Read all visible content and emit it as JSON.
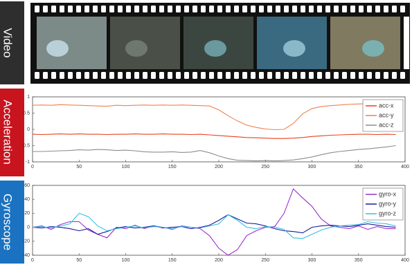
{
  "video": {
    "label": "Video"
  },
  "chart_data": [
    {
      "type": "line",
      "title": "Acceleration",
      "x": [
        0,
        10,
        20,
        30,
        40,
        50,
        60,
        70,
        80,
        90,
        100,
        110,
        120,
        130,
        140,
        150,
        160,
        170,
        180,
        190,
        200,
        210,
        220,
        230,
        240,
        250,
        260,
        270,
        280,
        290,
        300,
        310,
        320,
        330,
        340,
        350,
        360,
        370,
        380,
        390
      ],
      "series": [
        {
          "name": "acc-x",
          "color": "#e8411a",
          "values": [
            -0.15,
            -0.16,
            -0.15,
            -0.14,
            -0.15,
            -0.14,
            -0.15,
            -0.15,
            -0.16,
            -0.15,
            -0.15,
            -0.14,
            -0.15,
            -0.15,
            -0.14,
            -0.15,
            -0.15,
            -0.16,
            -0.15,
            -0.17,
            -0.19,
            -0.21,
            -0.23,
            -0.25,
            -0.26,
            -0.27,
            -0.28,
            -0.28,
            -0.27,
            -0.25,
            -0.22,
            -0.2,
            -0.18,
            -0.17,
            -0.16,
            -0.15,
            -0.15,
            -0.16,
            -0.15,
            -0.16
          ]
        },
        {
          "name": "acc-y",
          "color": "#f08050",
          "values": [
            0.74,
            0.75,
            0.74,
            0.76,
            0.75,
            0.74,
            0.73,
            0.72,
            0.71,
            0.74,
            0.73,
            0.74,
            0.75,
            0.74,
            0.75,
            0.74,
            0.75,
            0.74,
            0.73,
            0.72,
            0.6,
            0.42,
            0.26,
            0.13,
            0.06,
            0.01,
            -0.01,
            0.0,
            0.18,
            0.48,
            0.64,
            0.7,
            0.73,
            0.75,
            0.77,
            0.78,
            0.79,
            0.8,
            0.78,
            0.8
          ]
        },
        {
          "name": "acc-z",
          "color": "#8c8c8c",
          "values": [
            -0.68,
            -0.68,
            -0.67,
            -0.66,
            -0.65,
            -0.63,
            -0.64,
            -0.62,
            -0.63,
            -0.65,
            -0.64,
            -0.66,
            -0.69,
            -0.7,
            -0.7,
            -0.69,
            -0.71,
            -0.7,
            -0.65,
            -0.72,
            -0.82,
            -0.9,
            -0.95,
            -0.96,
            -0.97,
            -0.96,
            -0.97,
            -0.96,
            -0.94,
            -0.9,
            -0.85,
            -0.78,
            -0.72,
            -0.68,
            -0.65,
            -0.62,
            -0.6,
            -0.57,
            -0.54,
            -0.5
          ]
        }
      ],
      "xlim": [
        0,
        400
      ],
      "xticks": [
        0,
        50,
        100,
        150,
        200,
        250,
        300,
        350,
        400
      ],
      "ylim": [
        -1,
        1
      ],
      "yticks": [
        -1,
        -0.5,
        0,
        0.5,
        1
      ],
      "legend": "upper right"
    },
    {
      "type": "line",
      "title": "Gyroscope",
      "x": [
        0,
        10,
        20,
        30,
        40,
        50,
        60,
        70,
        80,
        90,
        100,
        110,
        120,
        130,
        140,
        150,
        160,
        170,
        180,
        190,
        200,
        210,
        220,
        230,
        240,
        250,
        260,
        270,
        280,
        290,
        300,
        310,
        320,
        330,
        340,
        350,
        360,
        370,
        380,
        390
      ],
      "series": [
        {
          "name": "gyro-x",
          "color": "#9b30d0",
          "values": [
            0,
            2,
            -3,
            4,
            8,
            8,
            -4,
            -10,
            -15,
            0,
            -2,
            3,
            -2,
            2,
            0,
            -3,
            2,
            0,
            -2,
            -12,
            -30,
            -40,
            -32,
            -12,
            -5,
            0,
            1,
            20,
            55,
            42,
            30,
            12,
            2,
            0,
            -2,
            2,
            -3,
            1,
            -2,
            -2
          ]
        },
        {
          "name": "gyro-y",
          "color": "#1a1a9c",
          "values": [
            0,
            -1,
            1,
            0,
            -2,
            -5,
            -2,
            -10,
            -6,
            -1,
            1,
            -1,
            0,
            2,
            -1,
            0,
            1,
            -2,
            0,
            3,
            10,
            18,
            12,
            6,
            5,
            2,
            -2,
            -5,
            -6,
            -8,
            0,
            2,
            3,
            2,
            1,
            3,
            5,
            3,
            1,
            0
          ]
        },
        {
          "name": "gyro-z",
          "color": "#35c0e0",
          "values": [
            0,
            1,
            -1,
            2,
            5,
            20,
            15,
            2,
            -5,
            -2,
            0,
            2,
            -1,
            1,
            0,
            -2,
            1,
            0,
            -1,
            2,
            5,
            18,
            10,
            0,
            -2,
            1,
            0,
            -3,
            -15,
            -16,
            -10,
            -4,
            0,
            2,
            3,
            4,
            8,
            6,
            5,
            2
          ]
        }
      ],
      "xlim": [
        0,
        400
      ],
      "xticks": [
        0,
        50,
        100,
        150,
        200,
        250,
        300,
        350,
        400
      ],
      "ylim": [
        -40,
        60
      ],
      "yticks": [
        -40,
        -20,
        0,
        20,
        40,
        60
      ],
      "legend": "upper right"
    }
  ]
}
